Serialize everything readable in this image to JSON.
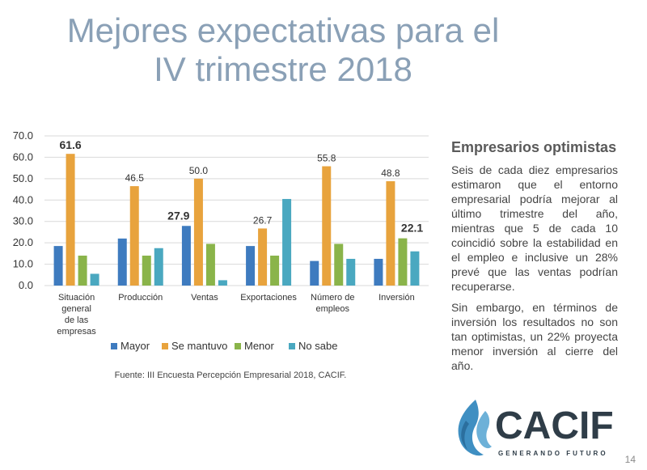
{
  "slide": {
    "title_line1": "Mejores expectativas para el",
    "title_line2": "IV trimestre 2018",
    "source": "Fuente: III Encuesta Percepción Empresarial 2018, CACIF.",
    "page_number": "14"
  },
  "aside": {
    "heading": "Empresarios optimistas",
    "paragraph1": "Seis de cada diez empresarios estimaron que el entorno empresarial podría mejorar al último trimestre del año, mientras que 5 de cada 10 coincidió sobre la estabilidad en el empleo e inclusive un 28% prevé que las ventas podrían recuperarse.",
    "paragraph2": "Sin embargo, en términos de inversión los resultados no son tan optimistas, un 22% proyecta menor inversión al cierre del año."
  },
  "logo": {
    "name": "CACIF",
    "tagline": "GENERANDO FUTURO"
  },
  "chart_data": {
    "type": "bar",
    "categories": [
      [
        "Situación",
        "general",
        "de las",
        "empresas"
      ],
      [
        "Producción"
      ],
      [
        "Ventas"
      ],
      [
        "Exportaciones"
      ],
      [
        "Número de",
        "empleos"
      ],
      [
        "Inversión"
      ]
    ],
    "series": [
      {
        "name": "Mayor",
        "color": "#3e7bbf",
        "values": [
          18.5,
          22,
          27.9,
          18.5,
          11.5,
          12.5
        ]
      },
      {
        "name": "Se mantuvo",
        "color": "#e8a33d",
        "values": [
          61.6,
          46.5,
          50.0,
          26.7,
          55.8,
          48.8
        ]
      },
      {
        "name": "Menor",
        "color": "#8ab44a",
        "values": [
          14,
          14,
          19.5,
          14,
          19.5,
          22.1
        ]
      },
      {
        "name": "No sabe",
        "color": "#4aa8c0",
        "values": [
          5.5,
          17.5,
          2.5,
          40.5,
          12.5,
          16
        ]
      }
    ],
    "data_labels": [
      {
        "category": 0,
        "series": 1,
        "text": "61.6",
        "bold": true
      },
      {
        "category": 1,
        "series": 1,
        "text": "46.5",
        "bold": false
      },
      {
        "category": 2,
        "series": 1,
        "text": "50.0",
        "bold": false
      },
      {
        "category": 2,
        "series": 0,
        "text": "27.9",
        "bold": true
      },
      {
        "category": 3,
        "series": 1,
        "text": "26.7",
        "bold": false
      },
      {
        "category": 4,
        "series": 1,
        "text": "55.8",
        "bold": false
      },
      {
        "category": 5,
        "series": 1,
        "text": "48.8",
        "bold": false
      },
      {
        "category": 5,
        "series": 2,
        "text": "22.1",
        "bold": true
      }
    ],
    "yticks": [
      "0.0",
      "10.0",
      "20.0",
      "30.0",
      "40.0",
      "50.0",
      "60.0",
      "70.0"
    ],
    "ylim": [
      0,
      70
    ],
    "grid": true,
    "legend_position": "bottom"
  }
}
